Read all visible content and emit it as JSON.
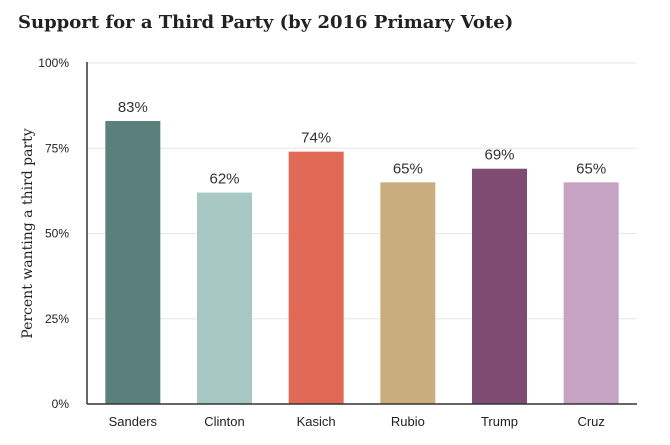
{
  "chart_data": {
    "type": "bar",
    "title": "Support for a Third Party (by 2016 Primary Vote)",
    "xlabel": "",
    "ylabel": "Percent wanting a third party",
    "ylim": [
      0,
      100
    ],
    "yticks": [
      0,
      25,
      50,
      75,
      100
    ],
    "ytick_labels": [
      "0%",
      "25%",
      "50%",
      "75%",
      "100%"
    ],
    "grid": true,
    "legend": "none",
    "categories": [
      "Sanders",
      "Clinton",
      "Kasich",
      "Rubio",
      "Trump",
      "Cruz"
    ],
    "values": [
      83,
      62,
      74,
      65,
      69,
      65
    ],
    "data_labels": [
      "83%",
      "62%",
      "74%",
      "65%",
      "69%",
      "65%"
    ],
    "colors": [
      "#5a7f7c",
      "#a8c9c3",
      "#e06a55",
      "#c9ad7e",
      "#7e4c72",
      "#c6a2c3"
    ]
  }
}
